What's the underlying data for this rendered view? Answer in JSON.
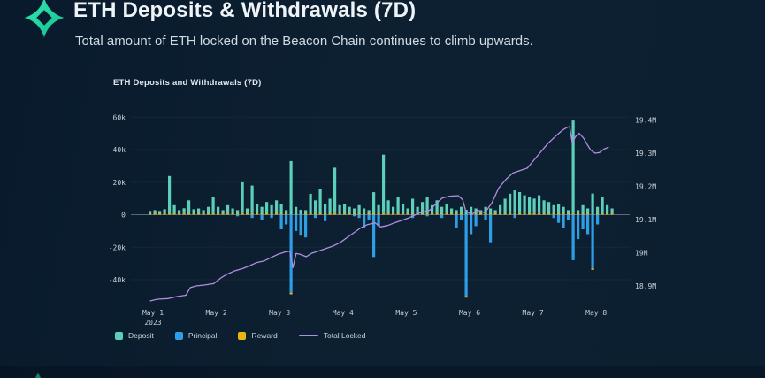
{
  "header": {
    "title": "ETH Deposits & Withdrawals (7D)",
    "subtitle": "Total amount of ETH locked on the Beacon Chain continues to climb upwards.",
    "logo_colors": {
      "start": "#35eab2",
      "end": "#0fbf8f"
    }
  },
  "chart_data": {
    "type": "bar",
    "title": "ETH Deposits and Withdrawals (7D)",
    "left_axis": {
      "ticks": [
        "60k",
        "40k",
        "20k",
        "0",
        "-20k",
        "-40k"
      ],
      "tick_values": [
        60,
        40,
        20,
        0,
        -20,
        -40
      ],
      "unit": "thousand ETH"
    },
    "right_axis": {
      "ticks": [
        "19.4M",
        "19.3M",
        "19.2M",
        "19.1M",
        "19M",
        "18.9M"
      ],
      "tick_values": [
        19.4,
        19.3,
        19.2,
        19.1,
        19.0,
        18.9
      ],
      "unit": "million ETH"
    },
    "x_axis": {
      "ticks": [
        "May 1",
        "May 2",
        "May 3",
        "May 4",
        "May 5",
        "May 6",
        "May 7",
        "May 8"
      ],
      "year_label": "2023"
    },
    "series_meta": [
      {
        "name": "Deposit",
        "color": "#5bcfba",
        "type": "bar"
      },
      {
        "name": "Principal",
        "color": "#2e9fe6",
        "type": "bar"
      },
      {
        "name": "Reward",
        "color": "#e8b514",
        "type": "bar"
      },
      {
        "name": "Total Locked",
        "color": "#b18ee0",
        "type": "line"
      }
    ],
    "bar_start_day": -0.07,
    "bar_interval_days": 0.0768,
    "bars_legend": "each entry = [deposit_k, principal_k, reward_k]",
    "bars": [
      [
        1.5,
        0,
        0.8
      ],
      [
        2,
        0,
        0.8
      ],
      [
        1.5,
        0,
        0.8
      ],
      [
        2.5,
        0,
        0.8
      ],
      [
        23,
        0,
        0.8
      ],
      [
        5,
        0,
        0.8
      ],
      [
        2,
        0,
        0.8
      ],
      [
        3,
        0,
        0.9
      ],
      [
        8,
        0,
        0.8
      ],
      [
        2.5,
        0,
        0.8
      ],
      [
        3,
        0,
        0.8
      ],
      [
        2,
        0,
        0.8
      ],
      [
        4,
        0,
        0.8
      ],
      [
        10,
        0,
        0.9
      ],
      [
        4,
        0,
        0.8
      ],
      [
        2,
        0,
        0.8
      ],
      [
        5,
        0,
        0.8
      ],
      [
        3,
        0,
        0.8
      ],
      [
        2,
        -1,
        0.8
      ],
      [
        19,
        0,
        0.9
      ],
      [
        3,
        0,
        0.8
      ],
      [
        17,
        -2,
        0.9
      ],
      [
        6,
        0,
        0.8
      ],
      [
        4,
        -3,
        0.8
      ],
      [
        7,
        0,
        0.8
      ],
      [
        5,
        -2,
        0.8
      ],
      [
        8,
        0,
        0.8
      ],
      [
        6,
        -9,
        0.8
      ],
      [
        2,
        -6,
        0.8
      ],
      [
        33,
        -48,
        -1
      ],
      [
        4,
        -10,
        0.8
      ],
      [
        3,
        -12,
        -0.8
      ],
      [
        2,
        -14,
        0.8
      ],
      [
        12,
        0,
        0.8
      ],
      [
        8,
        -2,
        0.8
      ],
      [
        15,
        0,
        0.8
      ],
      [
        6,
        -4,
        0.8
      ],
      [
        9,
        0,
        0.8
      ],
      [
        28,
        0,
        0.9
      ],
      [
        5,
        0,
        0.8
      ],
      [
        6,
        0,
        0.8
      ],
      [
        4,
        0,
        0.8
      ],
      [
        3,
        -1,
        0.8
      ],
      [
        5,
        -2,
        0.8
      ],
      [
        3,
        -8,
        0.8
      ],
      [
        2,
        -3,
        0.8
      ],
      [
        13,
        -26,
        0.8
      ],
      [
        5,
        -7,
        0.8
      ],
      [
        36,
        0,
        0.9
      ],
      [
        8,
        0,
        0.8
      ],
      [
        4,
        0,
        0.8
      ],
      [
        10,
        0,
        0.8
      ],
      [
        6,
        0,
        0.8
      ],
      [
        3,
        0,
        0.8
      ],
      [
        9,
        -2,
        0.8
      ],
      [
        4,
        0,
        0.8
      ],
      [
        7,
        0,
        0.8
      ],
      [
        10,
        -1,
        0.8
      ],
      [
        5,
        0,
        0.8
      ],
      [
        8,
        0,
        0.8
      ],
      [
        4,
        -2,
        0.8
      ],
      [
        6,
        0,
        0.8
      ],
      [
        3,
        0,
        0.8
      ],
      [
        2,
        -8,
        0.8
      ],
      [
        4,
        -3,
        0.8
      ],
      [
        3,
        -50,
        -1
      ],
      [
        4,
        -12,
        0.8
      ],
      [
        3,
        -7,
        0.8
      ],
      [
        2,
        0,
        0.8
      ],
      [
        4,
        -3,
        0.8
      ],
      [
        3,
        -17,
        0.8
      ],
      [
        2,
        0,
        0.8
      ],
      [
        5,
        0,
        0.8
      ],
      [
        9,
        0,
        0.8
      ],
      [
        12,
        0,
        0.9
      ],
      [
        14,
        -2,
        0.9
      ],
      [
        13,
        0,
        0.9
      ],
      [
        11,
        0,
        0.9
      ],
      [
        10,
        0,
        0.9
      ],
      [
        9,
        0,
        0.9
      ],
      [
        11,
        0,
        0.9
      ],
      [
        8,
        0,
        0.8
      ],
      [
        7,
        0,
        0.8
      ],
      [
        5,
        -2,
        0.8
      ],
      [
        6,
        -5,
        0.8
      ],
      [
        4,
        -8,
        0.8
      ],
      [
        2,
        -3,
        0.8
      ],
      [
        57,
        -28,
        0.9
      ],
      [
        2,
        -15,
        0.8
      ],
      [
        5,
        -9,
        0.8
      ],
      [
        3,
        -12,
        0.8
      ],
      [
        13,
        -33,
        -1
      ],
      [
        4,
        -6,
        0.8
      ],
      [
        10,
        0,
        0.8
      ],
      [
        5,
        0,
        0.8
      ],
      [
        3,
        0,
        0.8
      ]
    ],
    "total_locked_legend": "each entry = [days_since_may1, total_locked_M]",
    "total_locked": [
      [
        -0.04,
        18.855
      ],
      [
        0.07,
        18.86
      ],
      [
        0.24,
        18.862
      ],
      [
        0.38,
        18.868
      ],
      [
        0.52,
        18.872
      ],
      [
        0.59,
        18.895
      ],
      [
        0.68,
        18.9
      ],
      [
        0.82,
        18.903
      ],
      [
        0.96,
        18.907
      ],
      [
        1.08,
        18.925
      ],
      [
        1.19,
        18.937
      ],
      [
        1.3,
        18.946
      ],
      [
        1.41,
        18.952
      ],
      [
        1.52,
        18.96
      ],
      [
        1.63,
        18.97
      ],
      [
        1.75,
        18.975
      ],
      [
        1.86,
        18.985
      ],
      [
        1.97,
        18.995
      ],
      [
        2.08,
        19.002
      ],
      [
        2.16,
        19.005
      ],
      [
        2.21,
        18.955
      ],
      [
        2.26,
        18.998
      ],
      [
        2.33,
        18.995
      ],
      [
        2.42,
        18.988
      ],
      [
        2.5,
        18.998
      ],
      [
        2.61,
        19.005
      ],
      [
        2.72,
        19.012
      ],
      [
        2.84,
        19.02
      ],
      [
        2.95,
        19.03
      ],
      [
        3.06,
        19.045
      ],
      [
        3.17,
        19.06
      ],
      [
        3.28,
        19.075
      ],
      [
        3.39,
        19.085
      ],
      [
        3.51,
        19.09
      ],
      [
        3.59,
        19.078
      ],
      [
        3.7,
        19.082
      ],
      [
        3.81,
        19.09
      ],
      [
        3.92,
        19.097
      ],
      [
        4.04,
        19.105
      ],
      [
        4.15,
        19.115
      ],
      [
        4.26,
        19.123
      ],
      [
        4.37,
        19.128
      ],
      [
        4.48,
        19.15
      ],
      [
        4.57,
        19.165
      ],
      [
        4.68,
        19.17
      ],
      [
        4.82,
        19.172
      ],
      [
        4.89,
        19.16
      ],
      [
        4.94,
        19.125
      ],
      [
        5.03,
        19.115
      ],
      [
        5.13,
        19.128
      ],
      [
        5.24,
        19.12
      ],
      [
        5.35,
        19.15
      ],
      [
        5.46,
        19.195
      ],
      [
        5.57,
        19.22
      ],
      [
        5.68,
        19.24
      ],
      [
        5.8,
        19.248
      ],
      [
        5.91,
        19.255
      ],
      [
        6.02,
        19.28
      ],
      [
        6.13,
        19.305
      ],
      [
        6.24,
        19.33
      ],
      [
        6.35,
        19.35
      ],
      [
        6.47,
        19.37
      ],
      [
        6.54,
        19.378
      ],
      [
        6.58,
        19.38
      ],
      [
        6.62,
        19.332
      ],
      [
        6.68,
        19.352
      ],
      [
        6.73,
        19.36
      ],
      [
        6.8,
        19.345
      ],
      [
        6.86,
        19.325
      ],
      [
        6.91,
        19.31
      ],
      [
        6.98,
        19.3
      ],
      [
        7.05,
        19.302
      ],
      [
        7.12,
        19.312
      ],
      [
        7.19,
        19.318
      ]
    ]
  }
}
